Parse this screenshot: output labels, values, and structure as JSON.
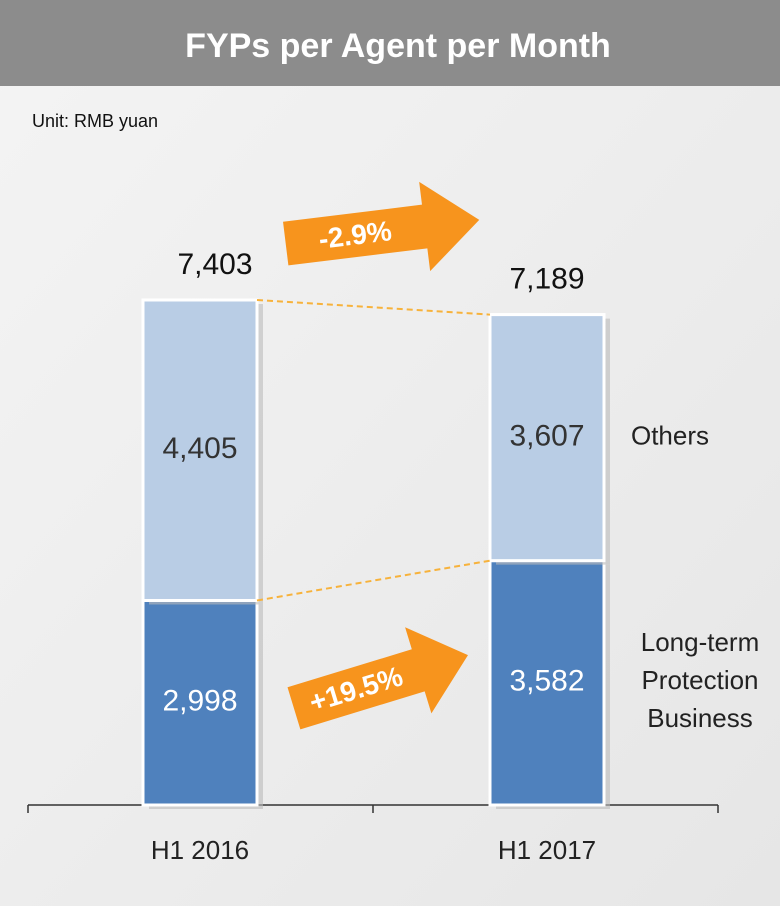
{
  "chart_data": {
    "type": "stacked-bar",
    "title": "FYPs per Agent per Month",
    "subtitle": "Unit: RMB yuan",
    "categories": [
      "H1 2016",
      "H1 2017"
    ],
    "series": [
      {
        "name": "Long-term Protection Business",
        "color": "#4f81bd",
        "values": [
          2998,
          3582
        ],
        "value_labels": [
          "2,998",
          "3,582"
        ]
      },
      {
        "name": "Others",
        "color": "#b9cde5",
        "values": [
          4405,
          3607
        ],
        "value_labels": [
          "4,405",
          "3,607"
        ]
      }
    ],
    "totals": [
      7403,
      7189
    ],
    "total_labels": [
      "7,403",
      "7,189"
    ],
    "annotations": [
      "-2.9%",
      "+19.5%"
    ]
  }
}
